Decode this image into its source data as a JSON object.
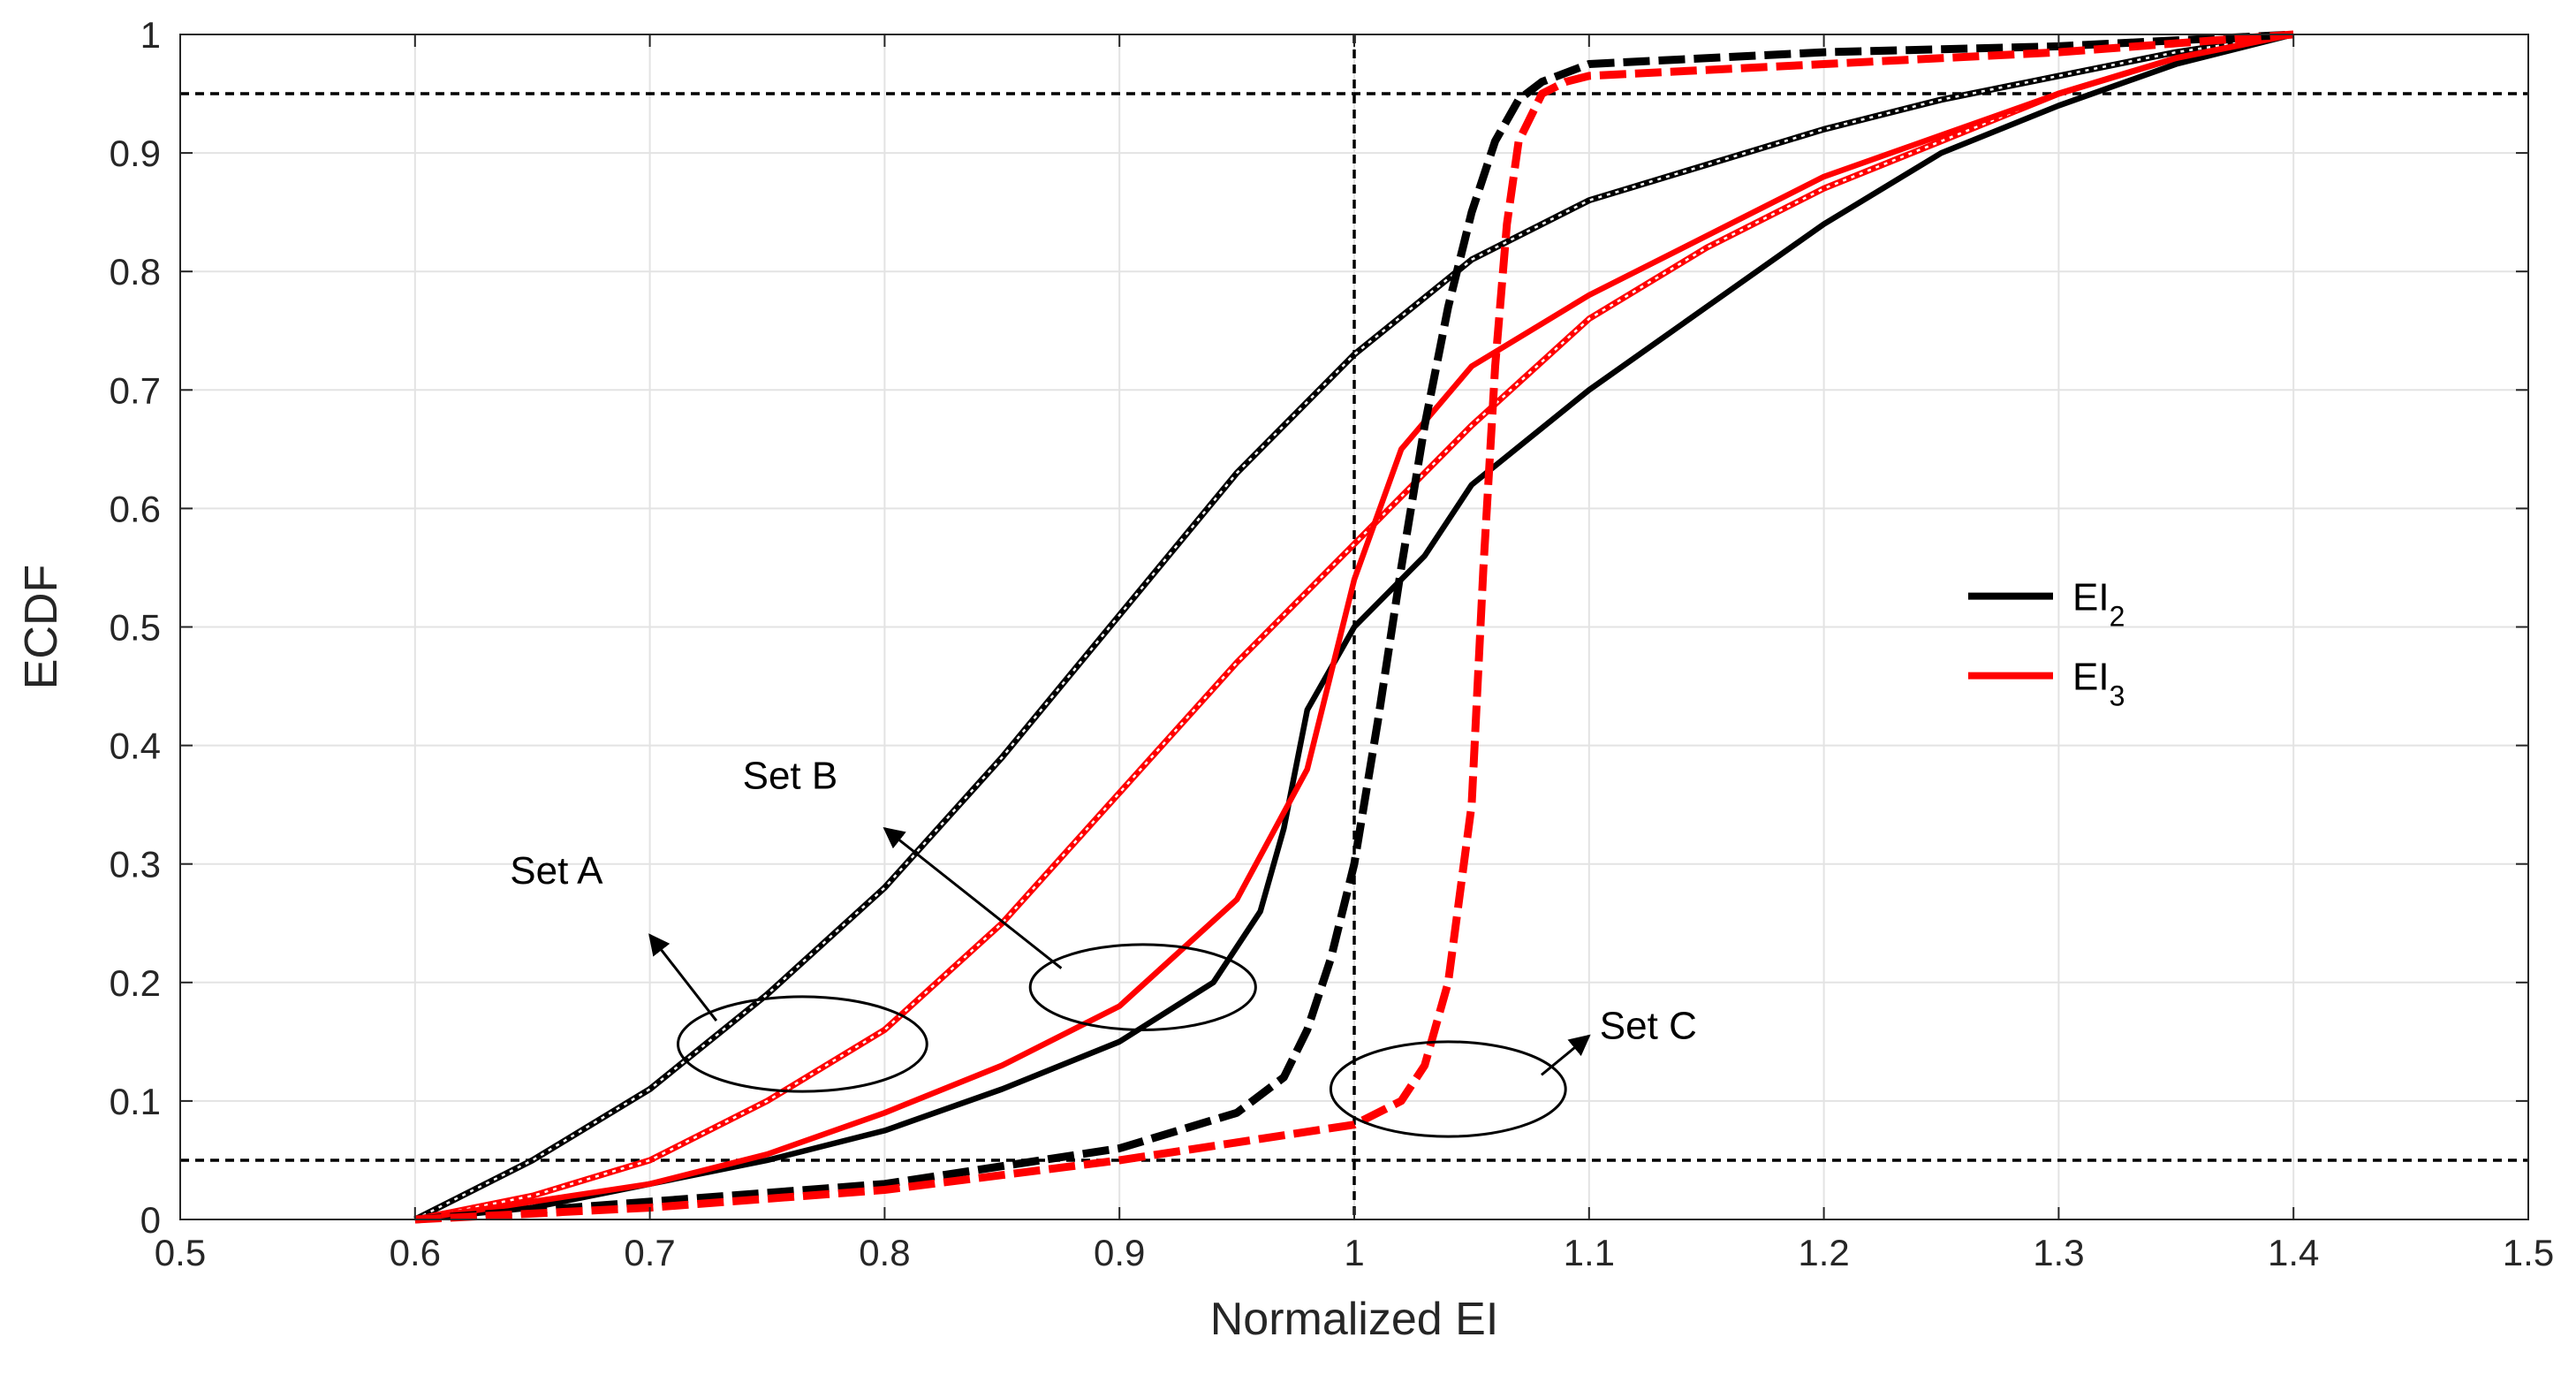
{
  "chart_data": {
    "type": "line",
    "title": "",
    "xlabel": "Normalized EI",
    "ylabel": "ECDF",
    "xlim": [
      0.5,
      1.5
    ],
    "ylim": [
      0,
      1
    ],
    "xticks": [
      "0.5",
      "0.6",
      "0.7",
      "0.8",
      "0.9",
      "1",
      "1.1",
      "1.2",
      "1.3",
      "1.4",
      "1.5"
    ],
    "yticks": [
      "0",
      "0.1",
      "0.2",
      "0.3",
      "0.4",
      "0.5",
      "0.6",
      "0.7",
      "0.8",
      "0.9",
      "1"
    ],
    "grid": true,
    "legend": {
      "position": "right",
      "entries": [
        {
          "name": "EI",
          "subscript": "2",
          "color": "#000000"
        },
        {
          "name": "EI",
          "subscript": "3",
          "color": "#ff0000"
        }
      ]
    },
    "reference_lines": [
      {
        "orientation": "horizontal",
        "value": 0.95,
        "style": "dashed",
        "color": "#000000"
      },
      {
        "orientation": "horizontal",
        "value": 0.05,
        "style": "dashed",
        "color": "#000000"
      },
      {
        "orientation": "vertical",
        "value": 1.0,
        "style": "dashed",
        "color": "#000000"
      }
    ],
    "series": [
      {
        "name": "Set A - EI2",
        "set": "A",
        "metric": "EI2",
        "color": "#000000",
        "style": "dotted-double",
        "x": [
          0.6,
          0.65,
          0.7,
          0.75,
          0.8,
          0.85,
          0.9,
          0.95,
          1.0,
          1.05,
          1.1,
          1.15,
          1.2,
          1.25,
          1.3,
          1.35,
          1.4
        ],
        "y": [
          0.0,
          0.05,
          0.11,
          0.19,
          0.28,
          0.39,
          0.51,
          0.63,
          0.73,
          0.81,
          0.86,
          0.89,
          0.92,
          0.945,
          0.965,
          0.985,
          1.0
        ]
      },
      {
        "name": "Set A - EI3",
        "set": "A",
        "metric": "EI3",
        "color": "#ff0000",
        "style": "dotted-double",
        "x": [
          0.6,
          0.65,
          0.7,
          0.75,
          0.8,
          0.85,
          0.9,
          0.95,
          1.0,
          1.05,
          1.1,
          1.15,
          1.2,
          1.25,
          1.3,
          1.35,
          1.4
        ],
        "y": [
          0.0,
          0.02,
          0.05,
          0.1,
          0.16,
          0.25,
          0.36,
          0.47,
          0.57,
          0.67,
          0.76,
          0.82,
          0.87,
          0.91,
          0.95,
          0.98,
          1.0
        ]
      },
      {
        "name": "Set B - EI2",
        "set": "B",
        "metric": "EI2",
        "color": "#000000",
        "style": "solid",
        "x": [
          0.6,
          0.65,
          0.7,
          0.75,
          0.8,
          0.85,
          0.9,
          0.94,
          0.96,
          0.97,
          0.98,
          1.0,
          1.03,
          1.05,
          1.1,
          1.15,
          1.2,
          1.25,
          1.3,
          1.35,
          1.4
        ],
        "y": [
          0.0,
          0.01,
          0.03,
          0.05,
          0.075,
          0.11,
          0.15,
          0.2,
          0.26,
          0.33,
          0.43,
          0.5,
          0.56,
          0.62,
          0.7,
          0.77,
          0.84,
          0.9,
          0.94,
          0.975,
          1.0
        ]
      },
      {
        "name": "Set B - EI3",
        "set": "B",
        "metric": "EI3",
        "color": "#ff0000",
        "style": "solid",
        "x": [
          0.6,
          0.65,
          0.7,
          0.75,
          0.8,
          0.85,
          0.9,
          0.95,
          0.98,
          1.0,
          1.02,
          1.05,
          1.1,
          1.15,
          1.2,
          1.25,
          1.3,
          1.35,
          1.4
        ],
        "y": [
          0.0,
          0.015,
          0.03,
          0.055,
          0.09,
          0.13,
          0.18,
          0.27,
          0.38,
          0.54,
          0.65,
          0.72,
          0.78,
          0.83,
          0.88,
          0.915,
          0.95,
          0.98,
          1.0
        ]
      },
      {
        "name": "Set C - EI2",
        "set": "C",
        "metric": "EI2",
        "color": "#000000",
        "style": "dashed-thick",
        "x": [
          0.6,
          0.7,
          0.8,
          0.9,
          0.95,
          0.97,
          0.98,
          0.99,
          1.0,
          1.01,
          1.02,
          1.03,
          1.04,
          1.05,
          1.06,
          1.07,
          1.08,
          1.1,
          1.2,
          1.3,
          1.4
        ],
        "y": [
          0.0,
          0.015,
          0.03,
          0.06,
          0.09,
          0.12,
          0.16,
          0.22,
          0.3,
          0.42,
          0.55,
          0.67,
          0.77,
          0.85,
          0.91,
          0.945,
          0.96,
          0.975,
          0.985,
          0.99,
          1.0
        ]
      },
      {
        "name": "Set C - EI3",
        "set": "C",
        "metric": "EI3",
        "color": "#ff0000",
        "style": "dashed-thick",
        "x": [
          0.6,
          0.7,
          0.8,
          0.9,
          0.95,
          1.0,
          1.02,
          1.03,
          1.04,
          1.05,
          1.055,
          1.06,
          1.065,
          1.07,
          1.08,
          1.09,
          1.1,
          1.2,
          1.3,
          1.4
        ],
        "y": [
          0.0,
          0.01,
          0.025,
          0.05,
          0.065,
          0.08,
          0.1,
          0.13,
          0.2,
          0.35,
          0.55,
          0.72,
          0.84,
          0.91,
          0.95,
          0.96,
          0.965,
          0.975,
          0.985,
          1.0
        ]
      }
    ],
    "annotations": [
      {
        "label": "Set A",
        "ellipse_center": [
          0.765,
          0.148
        ],
        "ellipse_radii": [
          0.053,
          0.04
        ],
        "text_at": [
          0.68,
          0.27
        ],
        "arrow_to": [
          0.7,
          0.24
        ]
      },
      {
        "label": "Set B",
        "ellipse_center": [
          0.91,
          0.196
        ],
        "ellipse_radii": [
          0.048,
          0.036
        ],
        "text_at": [
          0.78,
          0.35
        ],
        "arrow_to": [
          0.8,
          0.33
        ]
      },
      {
        "label": "Set C",
        "ellipse_center": [
          1.04,
          0.11
        ],
        "ellipse_radii": [
          0.05,
          0.04
        ],
        "text_at": [
          1.1,
          0.16
        ],
        "arrow_to": [
          1.1,
          0.155
        ]
      }
    ]
  }
}
